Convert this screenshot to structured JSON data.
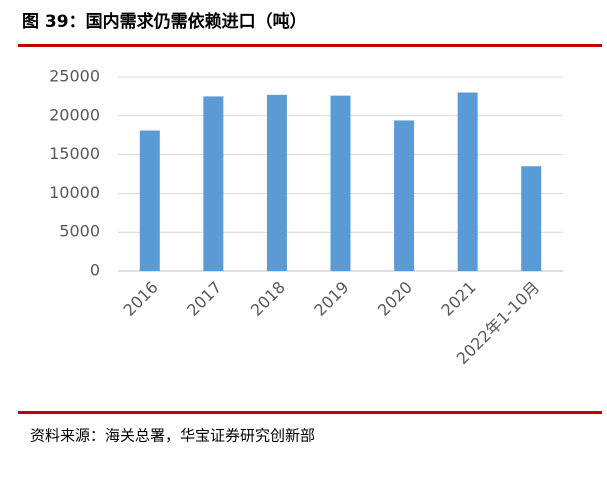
{
  "chart_data": {
    "type": "bar",
    "title": "图 39：国内需求仍需依赖进口（吨）",
    "source": "资料来源：海关总署，华宝证券研究创新部",
    "categories": [
      "2016",
      "2017",
      "2018",
      "2019",
      "2020",
      "2021",
      "2022年1-10月"
    ],
    "values": [
      18100,
      22500,
      22700,
      22600,
      19400,
      23000,
      13500
    ],
    "color": "#5b9bd5",
    "ylim": [
      0,
      25000
    ],
    "yticks": [
      0,
      5000,
      10000,
      15000,
      20000,
      25000
    ],
    "grid": true
  }
}
